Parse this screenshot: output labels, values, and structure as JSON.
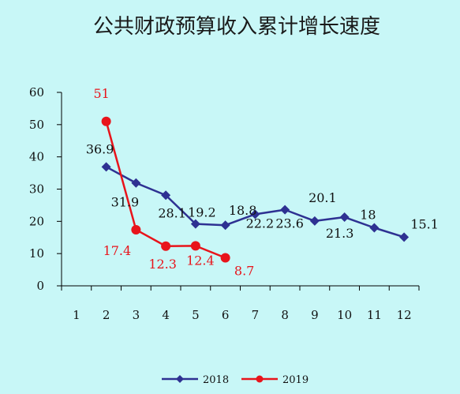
{
  "chart_data": {
    "type": "line",
    "title": "公共财政预算收入累计增长速度",
    "xlabel": "",
    "ylabel": "",
    "categories": [
      "1",
      "2",
      "3",
      "4",
      "5",
      "6",
      "7",
      "8",
      "9",
      "10",
      "11",
      "12"
    ],
    "ylim": [
      0,
      60
    ],
    "yticks": [
      0,
      10,
      20,
      30,
      40,
      50,
      60
    ],
    "grid": false,
    "legend_position": "bottom",
    "series": [
      {
        "name": "2018",
        "color": "#2e3192",
        "marker": "diamond",
        "points": [
          {
            "x": "2",
            "y": 36.9,
            "label": "36.9"
          },
          {
            "x": "3",
            "y": 31.9,
            "label": "31.9"
          },
          {
            "x": "4",
            "y": 28.1,
            "label": "28.1"
          },
          {
            "x": "5",
            "y": 19.2,
            "label": "19.2"
          },
          {
            "x": "6",
            "y": 18.8,
            "label": "18.8"
          },
          {
            "x": "7",
            "y": 22.2,
            "label": "22.2"
          },
          {
            "x": "8",
            "y": 23.6,
            "label": "23.6"
          },
          {
            "x": "9",
            "y": 20.1,
            "label": "20.1"
          },
          {
            "x": "10",
            "y": 21.3,
            "label": "21.3"
          },
          {
            "x": "11",
            "y": 18,
            "label": "18"
          },
          {
            "x": "12",
            "y": 15.1,
            "label": "15.1"
          }
        ]
      },
      {
        "name": "2019",
        "color": "#e8141b",
        "marker": "circle",
        "points": [
          {
            "x": "2",
            "y": 51,
            "label": "51"
          },
          {
            "x": "3",
            "y": 17.4,
            "label": "17.4"
          },
          {
            "x": "4",
            "y": 12.3,
            "label": "12.3"
          },
          {
            "x": "5",
            "y": 12.4,
            "label": "12.4"
          },
          {
            "x": "6",
            "y": 8.7,
            "label": "8.7"
          }
        ]
      }
    ]
  }
}
